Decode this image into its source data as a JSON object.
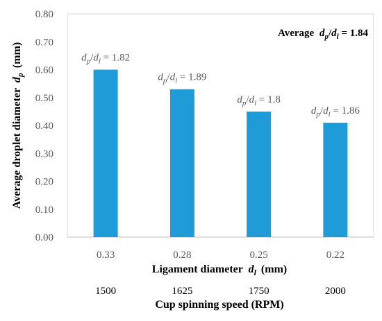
{
  "chart_data": {
    "type": "bar",
    "categories": [
      "0.33",
      "0.28",
      "0.25",
      "0.22"
    ],
    "secondary_categories": [
      "1500",
      "1625",
      "1750",
      "2000"
    ],
    "series": [
      {
        "values": [
          0.6,
          0.53,
          0.45,
          0.41
        ]
      }
    ],
    "data_labels": [
      "1.82",
      "1.89",
      "1.8",
      "1.86"
    ],
    "average_label": {
      "prefix": "Average",
      "value": "1.84"
    },
    "xlabel": {
      "text": "Ligament diameter",
      "var": "d",
      "sub": "l",
      "unit": "(mm)"
    },
    "xlabel2": "Cup spinning speed (RPM)",
    "ylabel": {
      "text": "Average droplet diameter",
      "var": "d",
      "sub": "p",
      "unit": "(mm)"
    },
    "ylim": [
      0,
      0.8
    ],
    "ytick_labels": [
      "0.00",
      "0.10",
      "0.20",
      "0.30",
      "0.40",
      "0.50",
      "0.60",
      "0.70",
      "0.80"
    ],
    "bar_color": "#1f9bd8",
    "grid": false,
    "legend": "none"
  }
}
